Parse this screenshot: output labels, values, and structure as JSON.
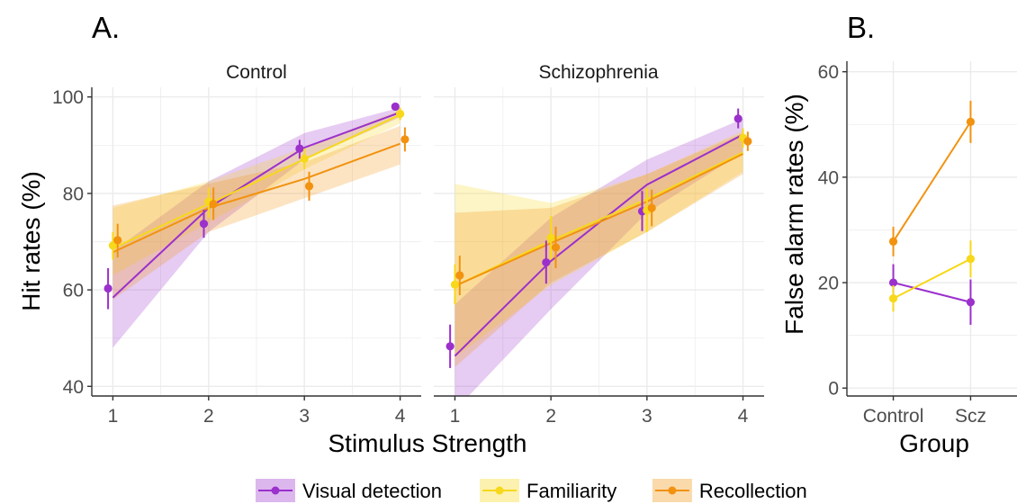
{
  "panel_labels": {
    "a": "A.",
    "b": "B."
  },
  "colors": {
    "visual": "#9b30cc",
    "familiarity": "#f7d81a",
    "recollection": "#f2920f",
    "grid": "#ebebeb",
    "axis": "#333333",
    "tick_text": "#4d4d4d"
  },
  "legend": {
    "items": [
      {
        "label": "Visual detection",
        "key": "visual"
      },
      {
        "label": "Familiarity",
        "key": "familiarity"
      },
      {
        "label": "Recollection",
        "key": "recollection"
      }
    ]
  },
  "chart_data": [
    {
      "type": "line",
      "panel": "A",
      "facet": "Control",
      "xlabel": "Stimulus Strength",
      "ylabel": "Hit rates (%)",
      "x": [
        1,
        2,
        3,
        4
      ],
      "xlim": [
        0.78,
        4.22
      ],
      "ylim": [
        38,
        102
      ],
      "yticks": [
        40,
        60,
        80,
        100
      ],
      "series": [
        {
          "key": "visual",
          "name": "Visual detection",
          "points": [
            60.3,
            73.7,
            89.3,
            98.0
          ],
          "err_low": [
            56.0,
            70.8,
            87.2,
            98.0
          ],
          "err_high": [
            64.5,
            76.6,
            91.1,
            98.0
          ],
          "fit": [
            58.4,
            77.0,
            89.5,
            96.8
          ],
          "band_low": [
            48.0,
            72.0,
            87.0,
            95.8
          ],
          "band_high": [
            68.0,
            82.5,
            92.5,
            97.8
          ]
        },
        {
          "key": "familiarity",
          "name": "Familiarity",
          "points": [
            69.2,
            78.3,
            87.2,
            96.5
          ],
          "err_low": [
            66.3,
            75.0,
            85.0,
            95.2
          ],
          "err_high": [
            72.0,
            81.2,
            89.3,
            97.8
          ],
          "fit": [
            68.6,
            77.8,
            87.1,
            96.3
          ],
          "band_low": [
            63.0,
            74.0,
            85.0,
            94.5
          ],
          "band_high": [
            77.0,
            82.5,
            89.5,
            97.3
          ]
        },
        {
          "key": "recollection",
          "name": "Recollection",
          "points": [
            70.3,
            77.8,
            81.5,
            91.2
          ],
          "err_low": [
            66.7,
            74.5,
            78.5,
            88.7
          ],
          "err_high": [
            73.7,
            81.2,
            84.5,
            93.7
          ],
          "fit": [
            67.8,
            77.0,
            83.0,
            90.3
          ],
          "band_low": [
            58.0,
            72.0,
            79.0,
            86.0
          ],
          "band_high": [
            77.5,
            82.0,
            86.5,
            94.0
          ]
        }
      ]
    },
    {
      "type": "line",
      "panel": "A",
      "facet": "Schizophrenia",
      "xlabel": "Stimulus Strength",
      "ylabel": "Hit rates (%)",
      "x": [
        1,
        2,
        3,
        4
      ],
      "xlim": [
        0.78,
        4.22
      ],
      "ylim": [
        38,
        102
      ],
      "yticks": [
        40,
        60,
        80,
        100
      ],
      "series": [
        {
          "key": "visual",
          "name": "Visual detection",
          "points": [
            48.3,
            65.7,
            76.3,
            95.5
          ],
          "err_low": [
            43.8,
            61.3,
            72.2,
            93.5
          ],
          "err_high": [
            52.8,
            70.2,
            80.5,
            97.6
          ],
          "fit": [
            46.3,
            66.0,
            81.8,
            92.2
          ],
          "band_low": [
            35.0,
            56.0,
            76.0,
            88.5
          ],
          "band_high": [
            57.0,
            75.0,
            87.0,
            95.5
          ]
        },
        {
          "key": "familiarity",
          "name": "Familiarity",
          "points": [
            61.1,
            70.8,
            76.5,
            91.5
          ],
          "err_low": [
            57.0,
            66.3,
            72.0,
            89.5
          ],
          "err_high": [
            65.3,
            75.3,
            81.0,
            93.5
          ],
          "fit": [
            60.8,
            70.2,
            78.8,
            88.5
          ],
          "band_low": [
            46.0,
            61.0,
            72.0,
            84.5
          ],
          "band_high": [
            82.0,
            78.0,
            84.0,
            93.0
          ]
        },
        {
          "key": "recollection",
          "name": "Recollection",
          "points": [
            63.0,
            68.8,
            77.0,
            90.8
          ],
          "err_low": [
            58.9,
            64.5,
            73.2,
            88.8
          ],
          "err_high": [
            67.1,
            73.1,
            80.8,
            92.8
          ],
          "fit": [
            60.8,
            69.7,
            78.3,
            88.2
          ],
          "band_low": [
            44.0,
            61.5,
            72.0,
            84.0
          ],
          "band_high": [
            76.0,
            77.0,
            84.0,
            92.5
          ]
        }
      ]
    },
    {
      "type": "line",
      "panel": "B",
      "xlabel": "Group",
      "ylabel": "False alarm rates (%)",
      "categories": [
        "Control",
        "Scz"
      ],
      "xlim": [
        0.4,
        2.6
      ],
      "ylim": [
        -1.5,
        62
      ],
      "yticks": [
        0,
        20,
        40,
        60
      ],
      "series": [
        {
          "key": "visual",
          "name": "Visual detection",
          "values": [
            20.0,
            16.3
          ],
          "err_low": [
            16.5,
            12.0
          ],
          "err_high": [
            23.5,
            20.6
          ]
        },
        {
          "key": "familiarity",
          "name": "Familiarity",
          "values": [
            17.0,
            24.5
          ],
          "err_low": [
            14.5,
            21.0
          ],
          "err_high": [
            19.5,
            28.0
          ]
        },
        {
          "key": "recollection",
          "name": "Recollection",
          "values": [
            27.8,
            50.5
          ],
          "err_low": [
            25.0,
            46.5
          ],
          "err_high": [
            30.6,
            54.5
          ]
        }
      ]
    }
  ]
}
